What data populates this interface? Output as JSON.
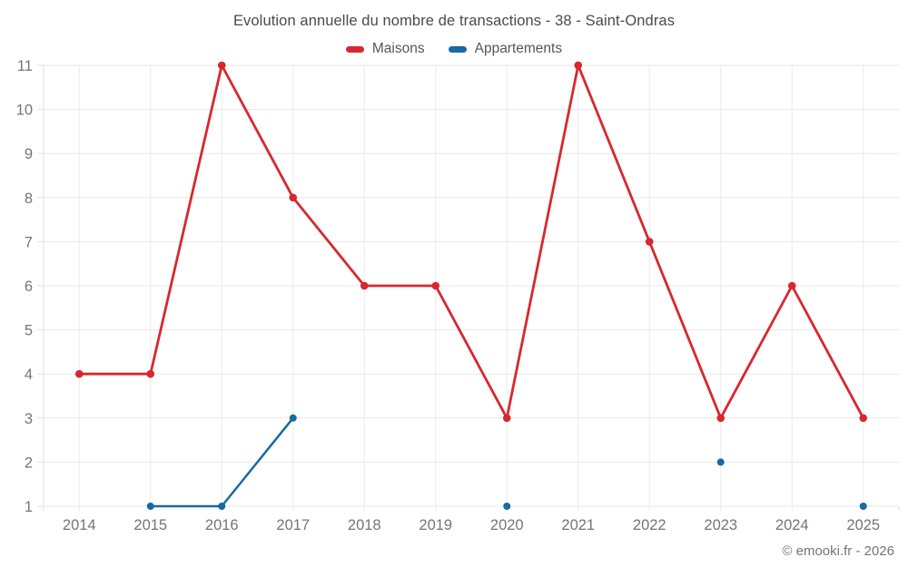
{
  "header": {
    "title": "Evolution annuelle du nombre de transactions - 38 - Saint-Ondras"
  },
  "legend": {
    "items": [
      {
        "label": "Maisons",
        "color": "#d7282e"
      },
      {
        "label": "Appartements",
        "color": "#176aa3"
      }
    ]
  },
  "footer": {
    "copyright": "© emooki.fr - 2026"
  },
  "chart_data": {
    "type": "line",
    "title": "Evolution annuelle du nombre de transactions - 38 - Saint-Ondras",
    "categories": [
      "2014",
      "2015",
      "2016",
      "2017",
      "2018",
      "2019",
      "2020",
      "2021",
      "2022",
      "2023",
      "2024",
      "2025"
    ],
    "series": [
      {
        "name": "Maisons",
        "color": "#d7282e",
        "line_width": 2.8,
        "marker_radius": 4.3,
        "values": [
          4,
          4,
          11,
          8,
          6,
          6,
          3,
          11,
          7,
          3,
          6,
          3
        ]
      },
      {
        "name": "Appartements",
        "color": "#176aa3",
        "line_width": 2.5,
        "marker_radius": 4.0,
        "values": [
          null,
          1,
          1,
          3,
          null,
          null,
          1,
          null,
          null,
          2,
          null,
          1
        ]
      }
    ],
    "xlabel": "",
    "ylabel": "",
    "ylim": [
      1,
      11
    ],
    "yticks": [
      1,
      2,
      3,
      4,
      5,
      6,
      7,
      8,
      9,
      10,
      11
    ],
    "grid": true,
    "legend_position": "top",
    "styles": {
      "h_grid_color": "#e7e7e7",
      "v_grid_color": "#ececec",
      "axis_border_color": "#e0e0e0",
      "tick_color": "#e2e2e2",
      "axis_label_color": "#757575"
    }
  }
}
